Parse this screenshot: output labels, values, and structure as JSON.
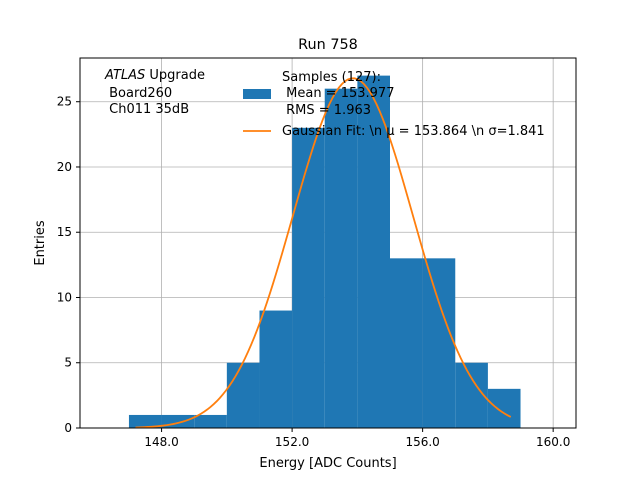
{
  "chart_data": {
    "type": "bar",
    "title": "Run 758",
    "xlabel": "Energy [ADC Counts]",
    "ylabel": "Entries",
    "xlim": [
      145.5,
      160.7
    ],
    "ylim": [
      0,
      28.35
    ],
    "xticks": [
      148,
      152,
      156,
      160
    ],
    "xtick_labels": [
      "148.0",
      "152.0",
      "156.0",
      "160.0"
    ],
    "yticks": [
      0,
      5,
      10,
      15,
      20,
      25
    ],
    "ytick_labels": [
      "0",
      "5",
      "10",
      "15",
      "20",
      "25"
    ],
    "grid": true,
    "histogram": {
      "name": "Samples (127):\n Mean = 153.977\n RMS = 1.963",
      "color": "#1f77b4",
      "bin_edges": [
        147,
        148,
        149,
        150,
        151,
        152,
        153,
        154,
        155,
        156,
        157,
        158,
        159
      ],
      "counts": [
        1,
        1,
        1,
        5,
        9,
        23,
        26,
        27,
        13,
        13,
        5,
        3
      ]
    },
    "fit": {
      "name": "Gaussian Fit: \\n $\\mu$ = 153.864 \\n $\\sigma$=1.841",
      "color": "#ff7f0e",
      "mu": 153.864,
      "sigma": 1.841,
      "amplitude": 26.8,
      "x_range": [
        147.2,
        158.7
      ]
    },
    "legend": {
      "placement": "top-right",
      "entries": [
        {
          "symbol": "patch",
          "color": "#1f77b4",
          "lines": [
            "Samples (127):",
            " Mean = 153.977",
            " RMS = 1.963"
          ]
        },
        {
          "symbol": "line",
          "color": "#ff7f0e",
          "lines": [
            "Gaussian Fit: \\n μ = 153.864 \\n σ=1.841"
          ]
        }
      ]
    },
    "annotation": {
      "lines": [
        "ATLAS Upgrade",
        " Board260",
        " Ch011 35dB"
      ],
      "italic_word": "ATLAS",
      "rest_of_first_line": " Upgrade"
    }
  }
}
